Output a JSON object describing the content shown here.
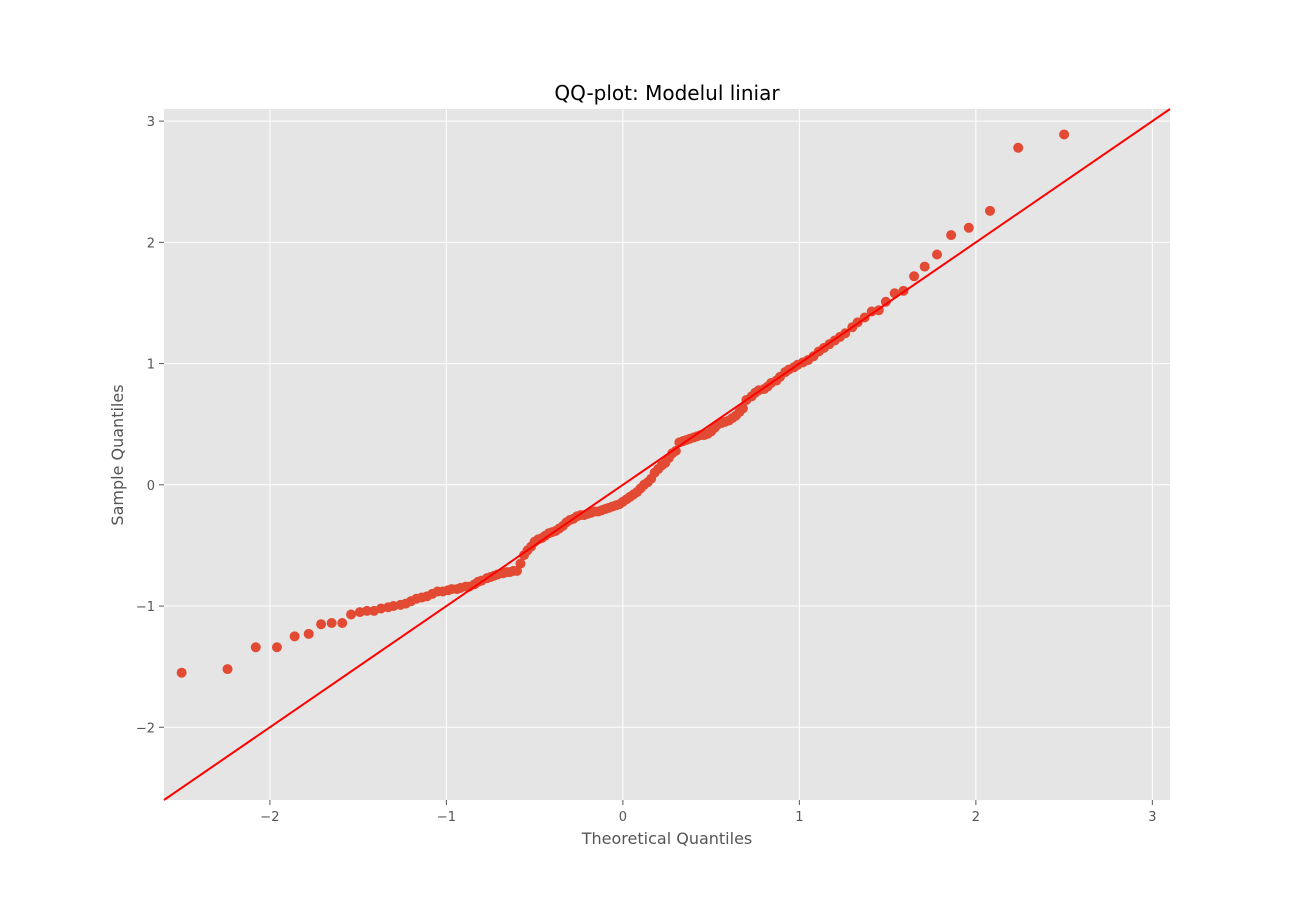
{
  "chart_data": {
    "type": "scatter",
    "title": "QQ-plot: Modelul liniar",
    "xlabel": "Theoretical Quantiles",
    "ylabel": "Sample Quantiles",
    "xlim": [
      -2.6,
      3.1
    ],
    "ylim": [
      -2.6,
      3.1
    ],
    "grid": true,
    "x_ticks": [
      {
        "value": -2,
        "label": "−2"
      },
      {
        "value": -1,
        "label": "−1"
      },
      {
        "value": 0,
        "label": "0"
      },
      {
        "value": 1,
        "label": "1"
      },
      {
        "value": 2,
        "label": "2"
      },
      {
        "value": 3,
        "label": "3"
      }
    ],
    "y_ticks": [
      {
        "value": -2,
        "label": "−2"
      },
      {
        "value": -1,
        "label": "−1"
      },
      {
        "value": 0,
        "label": "0"
      },
      {
        "value": 1,
        "label": "1"
      },
      {
        "value": 2,
        "label": "2"
      },
      {
        "value": 3,
        "label": "3"
      }
    ],
    "reference_line": {
      "slope": 1,
      "intercept": 0
    },
    "colors": {
      "points": "#e24a33",
      "line": "#ff0000",
      "background": "#e5e5e5",
      "grid": "#ffffff"
    },
    "x": [
      -2.5,
      -2.24,
      -2.08,
      -1.96,
      -1.86,
      -1.78,
      -1.71,
      -1.65,
      -1.59,
      -1.54,
      -1.49,
      -1.45,
      -1.41,
      -1.37,
      -1.33,
      -1.3,
      -1.26,
      -1.23,
      -1.2,
      -1.17,
      -1.14,
      -1.11,
      -1.08,
      -1.05,
      -1.02,
      -0.99,
      -0.97,
      -0.94,
      -0.92,
      -0.89,
      -0.87,
      -0.84,
      -0.82,
      -0.8,
      -0.77,
      -0.75,
      -0.73,
      -0.71,
      -0.68,
      -0.66,
      -0.64,
      -0.62,
      -0.6,
      -0.58,
      -0.56,
      -0.54,
      -0.52,
      -0.5,
      -0.48,
      -0.46,
      -0.44,
      -0.42,
      -0.4,
      -0.38,
      -0.36,
      -0.34,
      -0.32,
      -0.3,
      -0.28,
      -0.26,
      -0.24,
      -0.22,
      -0.2,
      -0.18,
      -0.16,
      -0.14,
      -0.12,
      -0.1,
      -0.08,
      -0.06,
      -0.04,
      -0.02,
      0.0,
      0.02,
      0.04,
      0.06,
      0.08,
      0.1,
      0.12,
      0.14,
      0.16,
      0.18,
      0.2,
      0.22,
      0.24,
      0.26,
      0.28,
      0.3,
      0.32,
      0.34,
      0.36,
      0.38,
      0.4,
      0.42,
      0.44,
      0.46,
      0.48,
      0.5,
      0.52,
      0.54,
      0.56,
      0.58,
      0.6,
      0.62,
      0.64,
      0.66,
      0.68,
      0.7,
      0.73,
      0.75,
      0.77,
      0.8,
      0.82,
      0.84,
      0.87,
      0.89,
      0.92,
      0.94,
      0.97,
      0.99,
      1.02,
      1.05,
      1.08,
      1.11,
      1.14,
      1.17,
      1.2,
      1.23,
      1.26,
      1.3,
      1.33,
      1.37,
      1.41,
      1.45,
      1.49,
      1.54,
      1.59,
      1.65,
      1.71,
      1.78,
      1.86,
      1.96,
      2.08,
      2.24,
      2.5
    ],
    "y": [
      -1.55,
      -1.52,
      -1.34,
      -1.34,
      -1.25,
      -1.23,
      -1.15,
      -1.14,
      -1.14,
      -1.07,
      -1.05,
      -1.04,
      -1.04,
      -1.02,
      -1.01,
      -1.0,
      -0.99,
      -0.98,
      -0.96,
      -0.94,
      -0.93,
      -0.92,
      -0.9,
      -0.88,
      -0.88,
      -0.87,
      -0.86,
      -0.86,
      -0.85,
      -0.84,
      -0.84,
      -0.82,
      -0.8,
      -0.79,
      -0.77,
      -0.76,
      -0.75,
      -0.74,
      -0.73,
      -0.72,
      -0.72,
      -0.71,
      -0.71,
      -0.65,
      -0.58,
      -0.54,
      -0.51,
      -0.47,
      -0.45,
      -0.44,
      -0.42,
      -0.4,
      -0.39,
      -0.38,
      -0.36,
      -0.34,
      -0.31,
      -0.29,
      -0.28,
      -0.26,
      -0.25,
      -0.25,
      -0.24,
      -0.23,
      -0.22,
      -0.22,
      -0.21,
      -0.2,
      -0.19,
      -0.18,
      -0.17,
      -0.16,
      -0.14,
      -0.12,
      -0.1,
      -0.08,
      -0.06,
      -0.03,
      0.0,
      0.02,
      0.05,
      0.1,
      0.13,
      0.16,
      0.18,
      0.22,
      0.26,
      0.28,
      0.35,
      0.36,
      0.37,
      0.38,
      0.39,
      0.4,
      0.41,
      0.41,
      0.42,
      0.44,
      0.47,
      0.5,
      0.51,
      0.52,
      0.53,
      0.55,
      0.57,
      0.6,
      0.63,
      0.7,
      0.73,
      0.76,
      0.78,
      0.79,
      0.81,
      0.84,
      0.86,
      0.89,
      0.93,
      0.95,
      0.97,
      0.99,
      1.01,
      1.03,
      1.06,
      1.1,
      1.13,
      1.16,
      1.19,
      1.22,
      1.25,
      1.3,
      1.34,
      1.38,
      1.43,
      1.44,
      1.51,
      1.58,
      1.6,
      1.72,
      1.8,
      1.9,
      2.06,
      2.12,
      2.26,
      2.78,
      2.89
    ]
  }
}
